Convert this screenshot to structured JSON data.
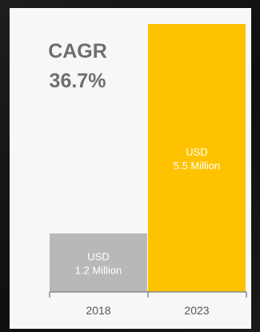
{
  "chart_data": {
    "type": "bar",
    "title": "CAGR\n36.7%",
    "title_lines": [
      "CAGR",
      "36.7%"
    ],
    "categories": [
      "2018",
      "2023"
    ],
    "values": [
      1.2,
      5.5
    ],
    "unit": "USD Million",
    "data_labels": [
      [
        "USD",
        "1.2 Million"
      ],
      [
        "USD",
        "5.5 Million"
      ]
    ],
    "ylim": [
      0,
      5.5
    ],
    "grid": false,
    "legend": "none",
    "colors": {
      "bar_2018": "#b8b8b8",
      "bar_2023": "#ffc200",
      "label_text": "#ffffff",
      "title_text": "#6e6e6e",
      "axis": "#8a8a8a",
      "tick_text": "#555555"
    }
  }
}
